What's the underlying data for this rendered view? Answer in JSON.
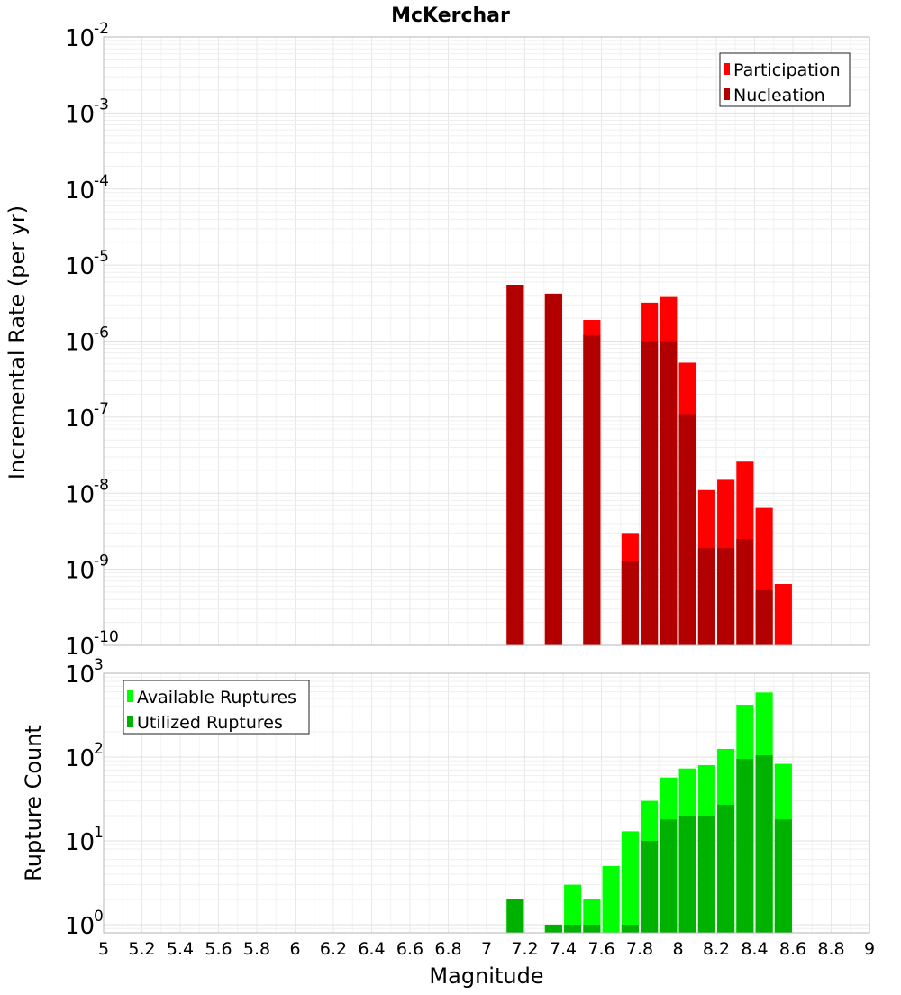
{
  "chart_data": [
    {
      "type": "bar",
      "title": "McKerchar",
      "ylabel": "Incremental Rate (per yr)",
      "yscale": "log",
      "ylim": [
        1e-10,
        0.01
      ],
      "ytick_exponents": [
        "-10",
        "-9",
        "-8",
        "-7",
        "-6",
        "-5",
        "-4",
        "-3",
        "-2"
      ],
      "grid": true,
      "legend_position": "top-right",
      "bar_width": 0.09,
      "series": [
        {
          "name": "Participation",
          "color": "#ff0000",
          "x": [
            7.15,
            7.35,
            7.55,
            7.75,
            7.85,
            7.95,
            8.05,
            8.15,
            8.25,
            8.35,
            8.45,
            8.55
          ],
          "values": [
            5.5e-06,
            4.2e-06,
            1.9e-06,
            3e-09,
            3.2e-06,
            3.9e-06,
            5.2e-07,
            1.1e-08,
            1.5e-08,
            2.6e-08,
            6.4e-09,
            6.4e-10
          ]
        },
        {
          "name": "Nucleation",
          "color": "#b20000",
          "x": [
            7.15,
            7.35,
            7.55,
            7.75,
            7.85,
            7.95,
            8.05,
            8.15,
            8.25,
            8.35,
            8.45
          ],
          "values": [
            5.5e-06,
            4.2e-06,
            1.2e-06,
            1.3e-09,
            1e-06,
            1e-06,
            1.1e-07,
            1.9e-09,
            1.9e-09,
            2.5e-09,
            5.3e-10
          ]
        }
      ]
    },
    {
      "type": "bar",
      "xlabel": "Magnitude",
      "ylabel": "Rupture Count",
      "yscale": "log",
      "ylim": [
        0.8,
        1000
      ],
      "ytick_exponents": [
        "0",
        "1",
        "2",
        "3"
      ],
      "xlim": [
        5,
        9
      ],
      "xticks": [
        "5",
        "5.2",
        "5.4",
        "5.6",
        "5.8",
        "6",
        "6.2",
        "6.4",
        "6.6",
        "6.8",
        "7",
        "7.2",
        "7.4",
        "7.6",
        "7.8",
        "8",
        "8.2",
        "8.4",
        "8.6",
        "8.8",
        "9"
      ],
      "grid": true,
      "legend_position": "top-left",
      "bar_width": 0.09,
      "series": [
        {
          "name": "Available Ruptures",
          "color": "#00ff00",
          "x": [
            7.15,
            7.35,
            7.45,
            7.55,
            7.65,
            7.75,
            7.85,
            7.95,
            8.05,
            8.15,
            8.25,
            8.35,
            8.45,
            8.55
          ],
          "values": [
            2,
            1,
            3,
            2,
            5,
            13,
            30,
            57,
            73,
            80,
            125,
            420,
            590,
            83
          ]
        },
        {
          "name": "Utilized Ruptures",
          "color": "#00b200",
          "x": [
            7.15,
            7.35,
            7.45,
            7.55,
            7.75,
            7.85,
            7.95,
            8.05,
            8.15,
            8.25,
            8.35,
            8.45,
            8.55
          ],
          "values": [
            2,
            1,
            1,
            1,
            1,
            10,
            18,
            20,
            20,
            27,
            95,
            105,
            18
          ]
        }
      ]
    }
  ]
}
